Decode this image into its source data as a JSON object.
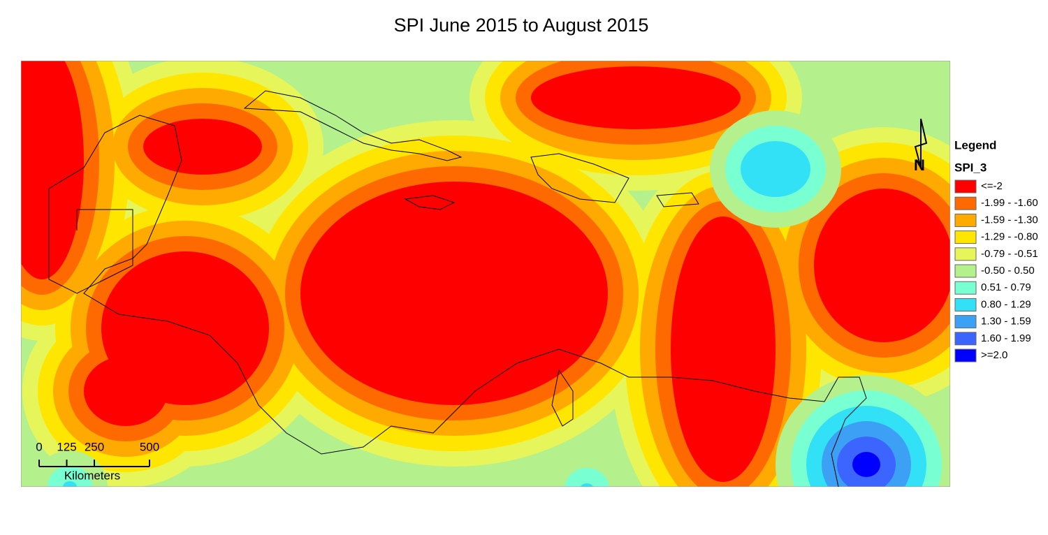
{
  "title": "SPI June 2015 to August 2015",
  "legend": {
    "title": "Legend",
    "layer": "SPI_3",
    "items": [
      {
        "label": "<=-2",
        "color": "#ff0000"
      },
      {
        "label": "-1.99 - -1.60",
        "color": "#ff6a00"
      },
      {
        "label": "-1.59 - -1.30",
        "color": "#ffaa00"
      },
      {
        "label": "-1.29 - -0.80",
        "color": "#ffe600"
      },
      {
        "label": "-0.79 - -0.51",
        "color": "#e6f55a"
      },
      {
        "label": "-0.50 - 0.50",
        "color": "#b4f08c"
      },
      {
        "label": "0.51 - 0.79",
        "color": "#78ffd2"
      },
      {
        "label": "0.80 - 1.29",
        "color": "#32e1f5"
      },
      {
        "label": "1.30 - 1.59",
        "color": "#3ca0f5"
      },
      {
        "label": "1.60 - 1.99",
        "color": "#3c64ff"
      },
      {
        "label": ">=2.0",
        "color": "#0000ff"
      }
    ]
  },
  "scale_bar": {
    "ticks": [
      0,
      125,
      250,
      500
    ],
    "unit": "Kilometers"
  },
  "north_arrow": "N"
}
